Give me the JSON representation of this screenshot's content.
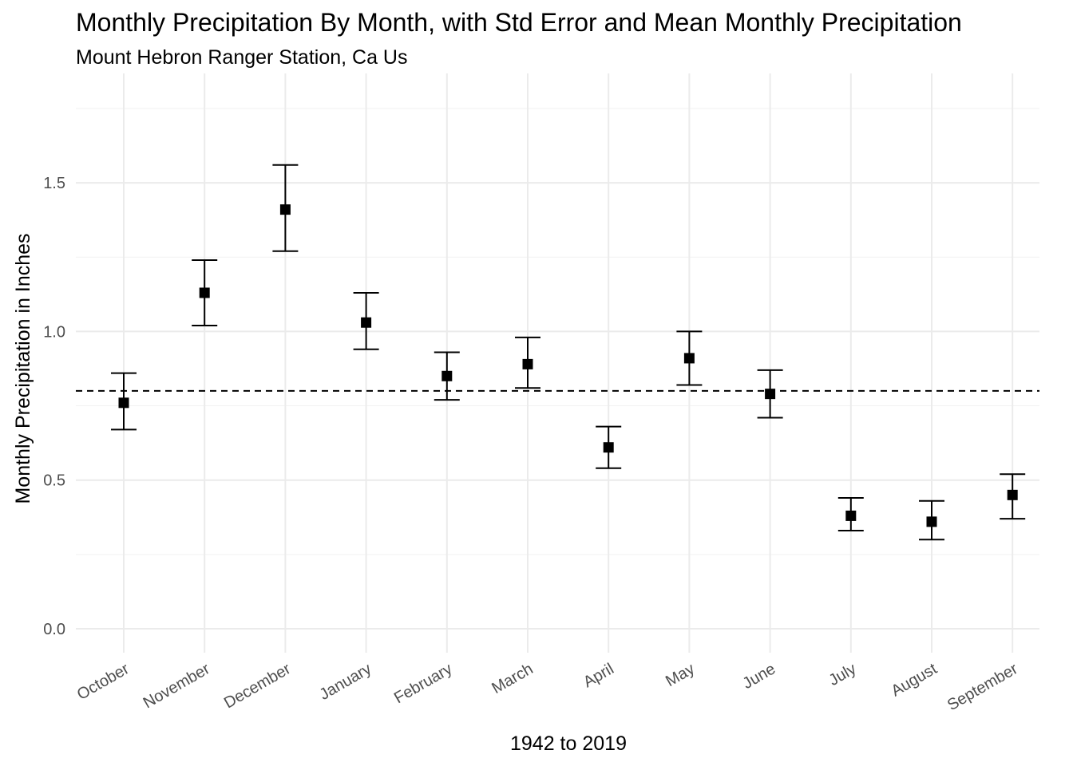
{
  "chart_data": {
    "type": "scatter",
    "title": "Monthly Precipitation By Month, with Std Error and Mean Monthly Precipitation",
    "subtitle": "Mount Hebron Ranger Station, Ca Us",
    "xlabel": "1942 to 2019",
    "ylabel": "Monthly Precipitation in Inches",
    "categories": [
      "October",
      "November",
      "December",
      "January",
      "February",
      "March",
      "April",
      "May",
      "June",
      "July",
      "August",
      "September"
    ],
    "values": [
      0.76,
      1.13,
      1.41,
      1.03,
      0.85,
      0.89,
      0.61,
      0.91,
      0.79,
      0.38,
      0.36,
      0.45
    ],
    "error_low": [
      0.67,
      1.02,
      1.27,
      0.94,
      0.77,
      0.81,
      0.54,
      0.82,
      0.71,
      0.33,
      0.3,
      0.37
    ],
    "error_high": [
      0.86,
      1.24,
      1.56,
      1.13,
      0.93,
      0.98,
      0.68,
      1.0,
      0.87,
      0.44,
      0.43,
      0.52
    ],
    "mean_line": 0.8,
    "yticks": [
      0.0,
      0.5,
      1.0,
      1.5
    ],
    "ytick_labels": [
      "0.0",
      "0.5",
      "1.0",
      "1.5"
    ],
    "ylim": [
      -0.08,
      1.8
    ],
    "grid": true,
    "legend": "none"
  }
}
